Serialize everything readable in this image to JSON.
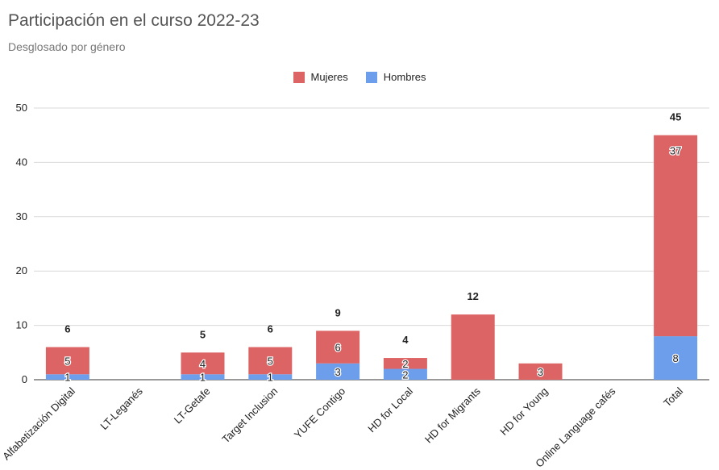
{
  "colors": {
    "mujeres": "#dd6464",
    "hombres": "#6d9eeb",
    "grid": "#d9d9d9",
    "axis": "#333333"
  },
  "chart_data": {
    "type": "bar",
    "stacked": true,
    "title": "Participación en el curso 2022-23",
    "subtitle": "Desglosado por género",
    "legend_position": "top",
    "grid": true,
    "ylim": [
      0,
      50
    ],
    "yticks": [
      "0",
      "10",
      "20",
      "30",
      "40",
      "50"
    ],
    "categories": [
      "Alfabetización Digital",
      "LT-Leganés",
      "LT-Getafe",
      "Target Inclusion",
      "YUFE Contigo",
      "HD for Local",
      "HD for Migrants",
      "HD for Young",
      "Online Language cafés",
      "Total"
    ],
    "series": [
      {
        "name": "Hombres",
        "values": [
          1,
          0,
          1,
          1,
          3,
          2,
          0,
          0,
          0,
          8
        ],
        "labels": [
          "1",
          "",
          "1",
          "1",
          "3",
          "2",
          "",
          "",
          "",
          "8"
        ]
      },
      {
        "name": "Mujeres",
        "values": [
          5,
          0,
          4,
          5,
          6,
          2,
          12,
          3,
          0,
          37
        ],
        "labels": [
          "5",
          "",
          "4",
          "5",
          "6",
          "2",
          "",
          "3",
          "",
          "37"
        ]
      }
    ],
    "totals": [
      "6",
      "",
      "5",
      "6",
      "9",
      "4",
      "12",
      "",
      "",
      "45"
    ]
  }
}
